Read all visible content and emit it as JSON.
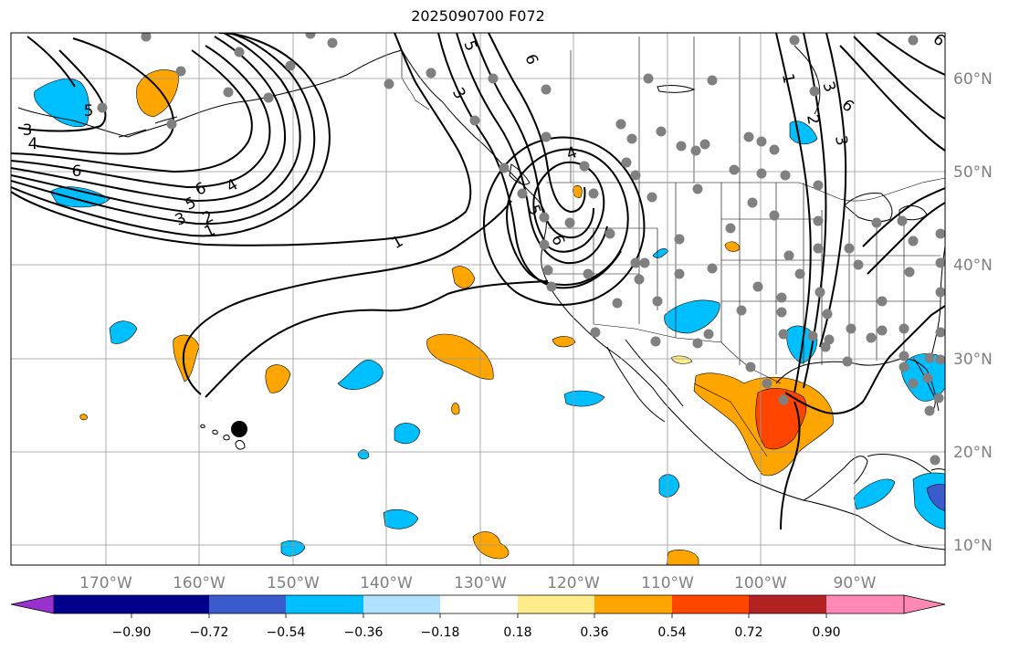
{
  "title": "2025090700 F072",
  "map": {
    "lon_ticks": [
      -170,
      -160,
      -150,
      -140,
      -130,
      -120,
      -110,
      -100,
      -90
    ],
    "lon_labels": [
      "170°W",
      "160°W",
      "150°W",
      "140°W",
      "130°W",
      "120°W",
      "110°W",
      "100°W",
      "90°W"
    ],
    "lat_ticks": [
      10,
      20,
      30,
      40,
      50,
      60
    ],
    "lat_labels": [
      "10°N",
      "20°N",
      "30°N",
      "40°N",
      "50°N",
      "60°N"
    ],
    "lon_range": [
      -180,
      -80.3
    ],
    "lat_range": [
      8,
      65
    ],
    "grid": true
  },
  "colorbar": {
    "colors": [
      "#9932CC",
      "#00008B",
      "#3A5BCC",
      "#00BFFF",
      "#B0E2FF",
      "#FFFFFF",
      "#FFEC8B",
      "#FFA500",
      "#FF4500",
      "#B22222",
      "#FF89B4"
    ],
    "tick_labels": [
      "−0.90",
      "−0.72",
      "−0.54",
      "−0.36",
      "−0.18",
      "0.18",
      "0.36",
      "0.54",
      "0.72",
      "0.90"
    ],
    "extend": "both"
  },
  "contour_labels": [
    "1",
    "2",
    "3",
    "4",
    "5",
    "6"
  ],
  "station_marker_color": "#808080"
}
